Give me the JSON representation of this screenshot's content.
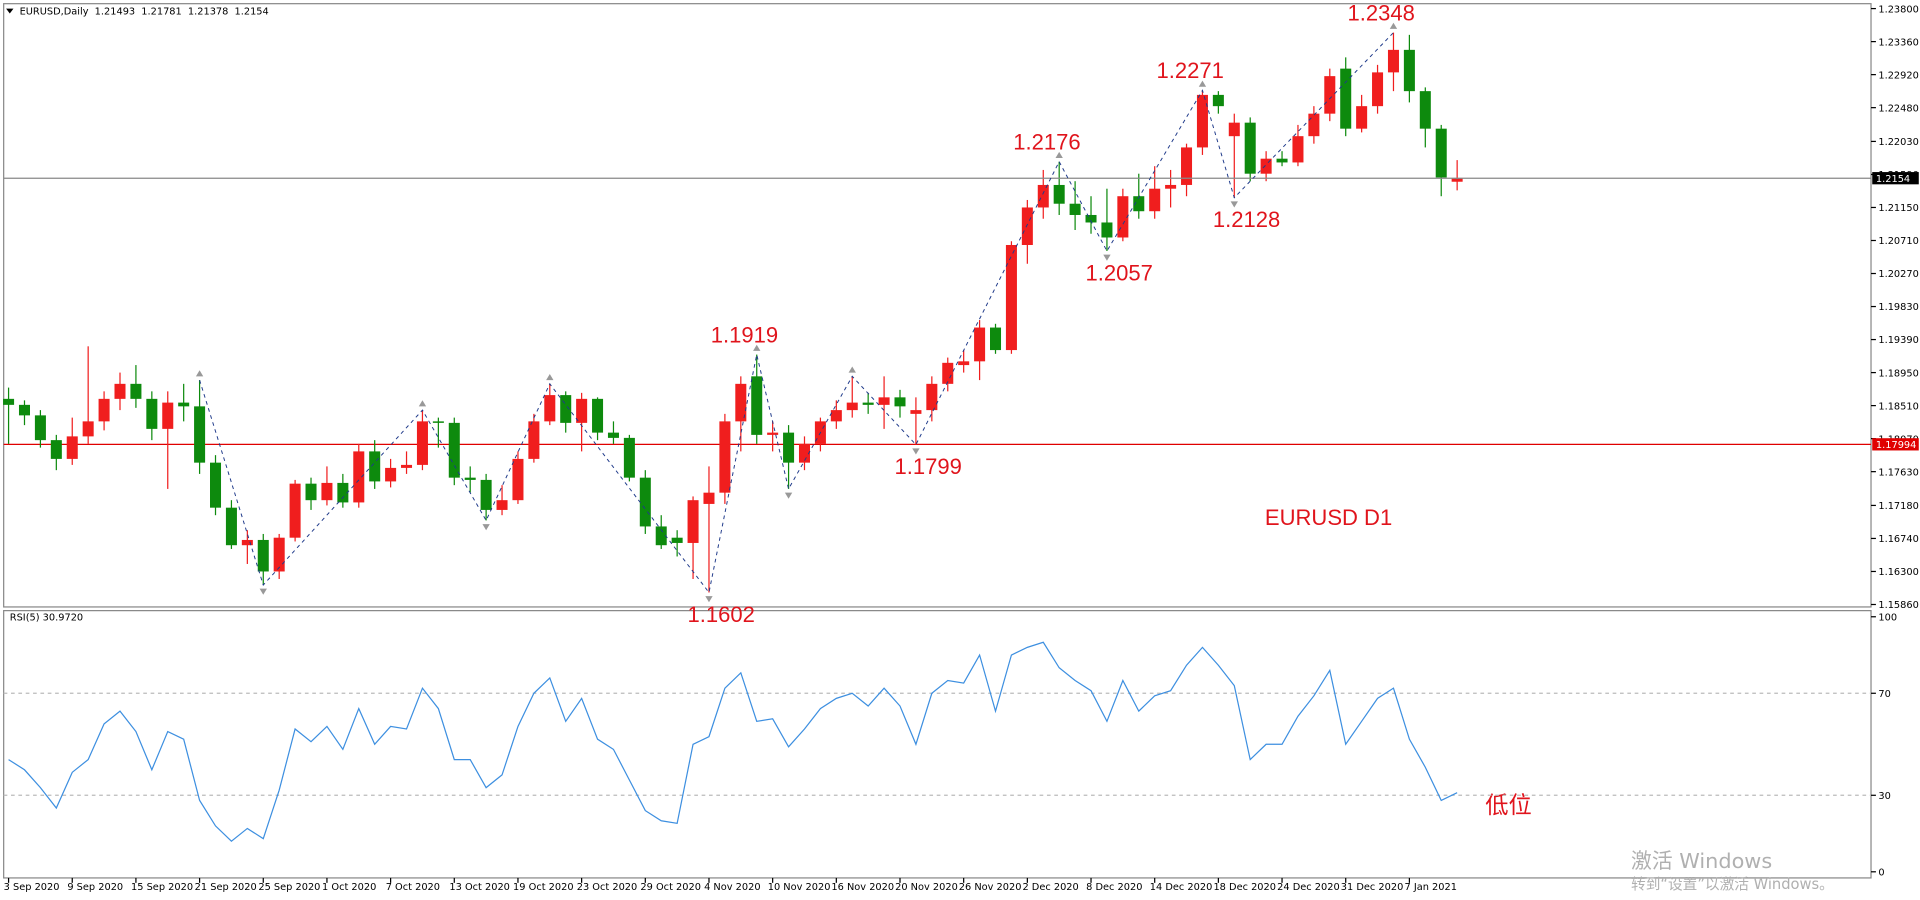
{
  "chart_data": [
    {
      "type": "candlestick",
      "title": "EURUSD,Daily",
      "annotation": "EURUSD D1",
      "up_color": "#f01e1e",
      "down_color": "#0d8a0d",
      "categories": [
        "3 Sep 2020",
        null,
        null,
        null,
        "9 Sep 2020",
        null,
        null,
        null,
        "15 Sep 2020",
        null,
        null,
        null,
        "21 Sep 2020",
        null,
        null,
        null,
        "25 Sep 2020",
        null,
        null,
        null,
        "1 Oct 2020",
        null,
        null,
        null,
        "7 Oct 2020",
        null,
        null,
        null,
        "13 Oct 2020",
        null,
        null,
        null,
        "19 Oct 2020",
        null,
        null,
        null,
        "23 Oct 2020",
        null,
        null,
        null,
        "29 Oct 2020",
        null,
        null,
        null,
        "4 Nov 2020",
        null,
        null,
        null,
        "10 Nov 2020",
        null,
        null,
        null,
        "16 Nov 2020",
        null,
        null,
        null,
        "20 Nov 2020",
        null,
        null,
        null,
        "26 Nov 2020",
        null,
        null,
        null,
        "2 Dec 2020",
        null,
        null,
        null,
        "8 Dec 2020",
        null,
        null,
        null,
        "14 Dec 2020",
        null,
        null,
        null,
        "18 Dec 2020",
        null,
        null,
        null,
        "24 Dec 2020",
        null,
        null,
        null,
        "31 Dec 2020",
        null,
        null,
        null,
        "7 Jan 2021",
        null,
        null,
        null
      ],
      "open": [
        1.186,
        1.1852,
        1.1838,
        1.1805,
        1.178,
        1.181,
        1.183,
        1.186,
        1.188,
        1.186,
        1.182,
        1.1855,
        1.185,
        1.1775,
        1.1715,
        1.1665,
        1.1672,
        1.163,
        1.1675,
        1.1747,
        1.1725,
        1.1748,
        1.1722,
        1.179,
        1.175,
        1.1768,
        1.1772,
        1.183,
        1.1828,
        1.1755,
        1.1752,
        1.1712,
        1.1725,
        1.178,
        1.183,
        1.1865,
        1.1828,
        1.186,
        1.1815,
        1.1808,
        1.1755,
        1.169,
        1.1675,
        1.1668,
        1.172,
        1.1735,
        1.183,
        1.189,
        1.1812,
        1.1815,
        1.1775,
        1.18,
        1.183,
        1.1845,
        1.1855,
        1.1852,
        1.1862,
        1.184,
        1.1845,
        1.188,
        1.1905,
        1.191,
        1.1955,
        1.1925,
        1.2065,
        1.2115,
        1.2145,
        1.212,
        1.2105,
        1.2095,
        1.2075,
        1.213,
        1.211,
        1.214,
        1.2145,
        1.2195,
        1.2265,
        1.221,
        1.2228,
        1.216,
        1.218,
        1.2175,
        1.221,
        1.224,
        1.23,
        1.222,
        1.225,
        1.2295,
        1.2325,
        1.227,
        1.222,
        1.21493
      ],
      "high": [
        1.1875,
        1.1858,
        1.1845,
        1.1812,
        1.1835,
        1.193,
        1.187,
        1.1895,
        1.1905,
        1.187,
        1.187,
        1.188,
        1.1885,
        1.1785,
        1.1725,
        1.1685,
        1.168,
        1.168,
        1.1752,
        1.1755,
        1.177,
        1.176,
        1.18,
        1.1805,
        1.178,
        1.179,
        1.1845,
        1.1835,
        1.1835,
        1.177,
        1.176,
        1.1745,
        1.179,
        1.184,
        1.188,
        1.187,
        1.1868,
        1.1862,
        1.183,
        1.1812,
        1.1765,
        1.1705,
        1.1685,
        1.173,
        1.177,
        1.184,
        1.189,
        1.1919,
        1.183,
        1.1825,
        1.181,
        1.1835,
        1.1858,
        1.189,
        1.1868,
        1.189,
        1.1872,
        1.1862,
        1.189,
        1.1915,
        1.1925,
        1.1965,
        1.196,
        1.207,
        1.2125,
        1.2165,
        1.2176,
        1.215,
        1.213,
        1.214,
        1.214,
        1.216,
        1.217,
        1.2165,
        1.22,
        1.2271,
        1.227,
        1.224,
        1.2235,
        1.219,
        1.219,
        1.2225,
        1.225,
        1.23,
        1.2315,
        1.2265,
        1.2305,
        1.2348,
        1.2345,
        1.2275,
        1.2225,
        1.21781
      ],
      "low": [
        1.18,
        1.1825,
        1.1795,
        1.1765,
        1.1772,
        1.18,
        1.1818,
        1.1845,
        1.1848,
        1.1805,
        1.174,
        1.183,
        1.176,
        1.1705,
        1.166,
        1.164,
        1.1612,
        1.162,
        1.167,
        1.1712,
        1.1718,
        1.1715,
        1.1715,
        1.174,
        1.1742,
        1.176,
        1.1765,
        1.1795,
        1.1745,
        1.1735,
        1.1698,
        1.1705,
        1.172,
        1.1775,
        1.1825,
        1.1815,
        1.179,
        1.1805,
        1.18,
        1.175,
        1.168,
        1.166,
        1.165,
        1.162,
        1.1602,
        1.172,
        1.179,
        1.18,
        1.179,
        1.174,
        1.1765,
        1.179,
        1.182,
        1.1835,
        1.184,
        1.182,
        1.1835,
        1.1799,
        1.183,
        1.187,
        1.1895,
        1.1885,
        1.192,
        1.192,
        1.204,
        1.21,
        1.2105,
        1.2085,
        1.208,
        1.2057,
        1.207,
        1.21,
        1.21,
        1.2115,
        1.213,
        1.2185,
        1.224,
        1.2128,
        1.215,
        1.215,
        1.217,
        1.217,
        1.22,
        1.223,
        1.221,
        1.2215,
        1.224,
        1.227,
        1.2255,
        1.2195,
        1.213,
        1.21378
      ],
      "close": [
        1.1852,
        1.1838,
        1.1805,
        1.178,
        1.181,
        1.183,
        1.186,
        1.188,
        1.186,
        1.182,
        1.1855,
        1.185,
        1.1775,
        1.1715,
        1.1665,
        1.1672,
        1.163,
        1.1675,
        1.1747,
        1.1725,
        1.1748,
        1.1722,
        1.179,
        1.175,
        1.1768,
        1.1772,
        1.183,
        1.1828,
        1.1755,
        1.1752,
        1.1712,
        1.1725,
        1.178,
        1.183,
        1.1865,
        1.1828,
        1.186,
        1.1815,
        1.1808,
        1.1755,
        1.169,
        1.1665,
        1.1668,
        1.1725,
        1.1735,
        1.183,
        1.188,
        1.1812,
        1.1815,
        1.1775,
        1.18,
        1.183,
        1.1845,
        1.1855,
        1.1852,
        1.1862,
        1.185,
        1.1845,
        1.188,
        1.1908,
        1.191,
        1.1955,
        1.1925,
        1.2065,
        1.2115,
        1.2145,
        1.212,
        1.2105,
        1.2095,
        1.2075,
        1.213,
        1.211,
        1.214,
        1.2145,
        1.2195,
        1.2265,
        1.225,
        1.2228,
        1.216,
        1.218,
        1.2175,
        1.221,
        1.224,
        1.229,
        1.222,
        1.225,
        1.2295,
        1.2325,
        1.227,
        1.222,
        1.2155,
        1.2154
      ],
      "zigzag": {
        "color": "#1f3a8a",
        "x": [
          12,
          16,
          26,
          30,
          34,
          44,
          47,
          49,
          53,
          57,
          66,
          69,
          75,
          77,
          87
        ],
        "values": [
          1.1885,
          1.1612,
          1.1845,
          1.1698,
          1.188,
          1.1602,
          1.1919,
          1.174,
          1.189,
          1.1799,
          1.2176,
          1.2057,
          1.2271,
          1.2128,
          1.2348
        ],
        "value_labels": [
          null,
          null,
          null,
          null,
          null,
          "1.1602",
          "1.1919",
          null,
          null,
          "1.1799",
          "1.2176",
          "1.2057",
          "1.2271",
          "1.2128",
          "1.2348"
        ]
      },
      "hline": {
        "value": 1.17994,
        "color": "#e00000"
      },
      "ylim": [
        1.1586,
        1.238
      ],
      "yticks": [
        {
          "value": 1.238,
          "label": "1.23800"
        },
        {
          "value": 1.2336,
          "label": "1.23360"
        },
        {
          "value": 1.2292,
          "label": "1.22920"
        },
        {
          "value": 1.2248,
          "label": "1.22480"
        },
        {
          "value": 1.2203,
          "label": "1.22030"
        },
        {
          "value": 1.2159,
          "label": "1.21590"
        },
        {
          "value": 1.2115,
          "label": "1.21150"
        },
        {
          "value": 1.2071,
          "label": "1.20710"
        },
        {
          "value": 1.2027,
          "label": "1.20270"
        },
        {
          "value": 1.1983,
          "label": "1.19830"
        },
        {
          "value": 1.1939,
          "label": "1.19390"
        },
        {
          "value": 1.1895,
          "label": "1.18950"
        },
        {
          "value": 1.1851,
          "label": "1.18510"
        },
        {
          "value": 1.1807,
          "label": "1.18070"
        },
        {
          "value": 1.1763,
          "label": "1.17630"
        },
        {
          "value": 1.1718,
          "label": "1.17180"
        },
        {
          "value": 1.1674,
          "label": "1.16740"
        },
        {
          "value": 1.163,
          "label": "1.16300"
        },
        {
          "value": 1.1586,
          "label": "1.15860"
        }
      ]
    },
    {
      "type": "line",
      "title": "RSI(5) 30.9720",
      "annotation": "低位",
      "color": "#3d8fe0",
      "values": [
        44,
        40,
        33,
        25,
        39,
        44,
        58,
        63,
        55,
        40,
        55,
        52,
        28,
        18,
        12,
        17,
        13,
        32,
        56,
        51,
        57,
        48,
        64,
        50,
        57,
        56,
        72,
        64,
        44,
        44,
        33,
        38,
        57,
        70,
        76,
        59,
        68,
        52,
        48,
        36,
        24,
        20,
        19,
        50,
        53,
        72,
        78,
        59,
        60,
        49,
        56,
        64,
        68,
        70,
        65,
        72,
        65,
        50,
        70,
        75,
        74,
        85,
        63,
        85,
        88,
        90,
        80,
        75,
        71,
        59,
        75,
        63,
        69,
        71,
        81,
        88,
        81,
        73,
        44,
        50,
        50,
        61,
        69,
        79,
        50,
        59,
        68,
        72,
        52,
        41,
        28,
        31
      ],
      "ylim": [
        0,
        100
      ],
      "yticks": [
        0,
        30,
        70,
        100
      ],
      "levels": [
        30,
        70
      ]
    }
  ],
  "watermark": [
    "激活 Windows",
    "转到“设置”以激活 Windows。"
  ]
}
